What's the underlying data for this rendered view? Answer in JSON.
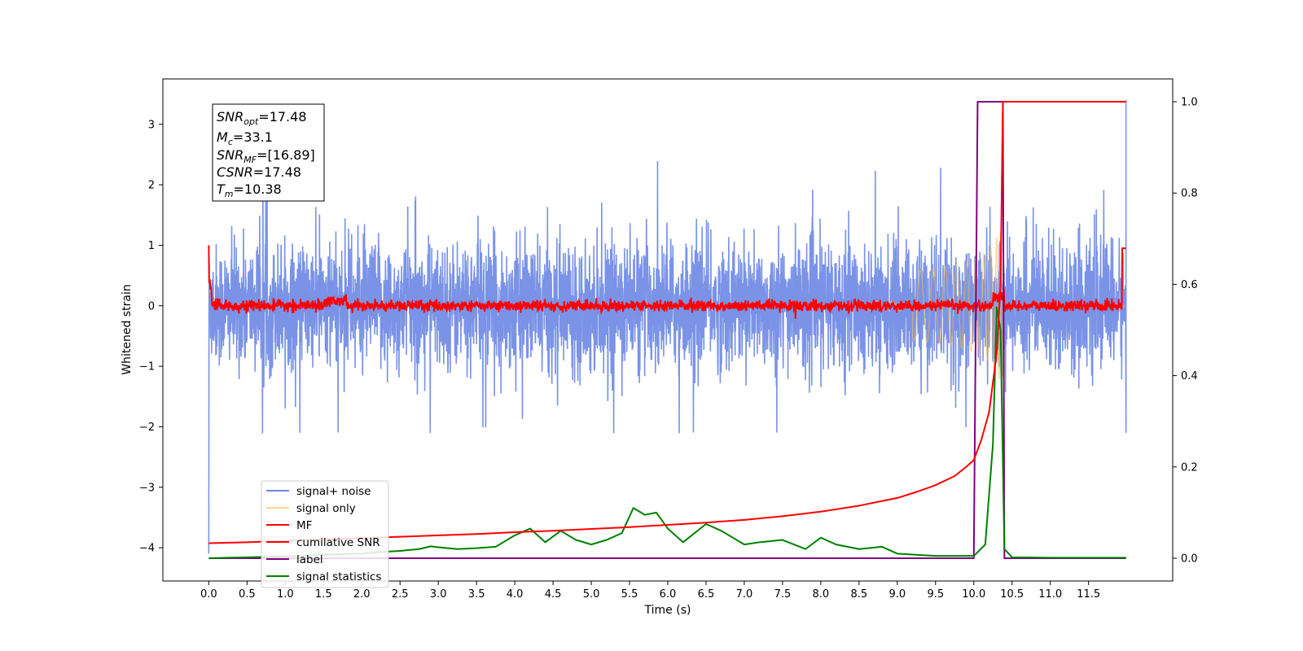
{
  "chart_data": {
    "type": "line",
    "xlabel": "Time (s)",
    "ylabel": "Whitened strain",
    "xlim": [
      -0.6,
      12.6
    ],
    "ylim": [
      -4.55,
      3.75
    ],
    "y2lim": [
      -0.05,
      1.05
    ],
    "x_ticks": [
      "0.0",
      "0.5",
      "1.0",
      "1.5",
      "2.0",
      "2.5",
      "3.0",
      "3.5",
      "4.0",
      "4.5",
      "5.0",
      "5.5",
      "6.0",
      "6.5",
      "7.0",
      "7.5",
      "8.0",
      "8.5",
      "9.0",
      "9.5",
      "10.0",
      "10.5",
      "11.0",
      "11.5"
    ],
    "y_ticks": [
      "3",
      "2",
      "1",
      "0",
      "−1",
      "−2",
      "−3",
      "−4"
    ],
    "y2_ticks": [
      "1.0",
      "0.8",
      "0.6",
      "0.4",
      "0.2",
      "0.0"
    ],
    "annotations": {
      "snr_opt": "=17.48",
      "mc": "=33.1",
      "snr_mf": "=[16.89]",
      "csnr": "=17.48",
      "tm": "=10.38"
    },
    "legend": {
      "placement": "lower-left",
      "entries": [
        "signal+ noise",
        "signal only",
        "MF",
        "cumilative SNR",
        "label",
        "signal statistics"
      ]
    },
    "colors": {
      "signal_noise": "#6b87e4",
      "signal_only": "#f5b942",
      "mf": "#ff0000",
      "cumulative_snr": "#ff0000",
      "label": "#800080",
      "signal_statistics": "#008000"
    },
    "series": [
      {
        "name": "label",
        "axis": "right",
        "x": [
          0.0,
          10.0,
          10.05,
          10.38,
          10.4,
          11.99
        ],
        "y": [
          0.0,
          0.0,
          1.0,
          1.0,
          0.0,
          0.0
        ]
      },
      {
        "name": "signal statistics",
        "axis": "right",
        "x": [
          0.0,
          0.25,
          0.5,
          0.75,
          1.0,
          1.25,
          1.5,
          1.75,
          2.0,
          2.2,
          2.5,
          2.75,
          2.9,
          3.0,
          3.25,
          3.5,
          3.75,
          4.0,
          4.2,
          4.4,
          4.6,
          4.8,
          5.0,
          5.2,
          5.4,
          5.55,
          5.7,
          5.85,
          6.0,
          6.2,
          6.5,
          6.7,
          7.0,
          7.2,
          7.5,
          7.8,
          8.0,
          8.2,
          8.5,
          8.8,
          9.0,
          9.5,
          10.0,
          10.15,
          10.25,
          10.3,
          10.35,
          10.4,
          10.5,
          11.0,
          11.5,
          11.99
        ],
        "y": [
          0.0,
          0.001,
          0.002,
          0.003,
          0.004,
          0.005,
          0.008,
          0.009,
          0.01,
          0.013,
          0.016,
          0.02,
          0.026,
          0.024,
          0.02,
          0.022,
          0.025,
          0.05,
          0.065,
          0.035,
          0.06,
          0.04,
          0.03,
          0.04,
          0.055,
          0.11,
          0.095,
          0.1,
          0.065,
          0.035,
          0.075,
          0.06,
          0.03,
          0.035,
          0.04,
          0.02,
          0.045,
          0.03,
          0.02,
          0.025,
          0.01,
          0.005,
          0.005,
          0.03,
          0.25,
          0.55,
          0.5,
          0.02,
          0.002,
          0.001,
          0.001,
          0.001
        ]
      },
      {
        "name": "cumilative SNR",
        "axis": "right",
        "x": [
          0.0,
          0.5,
          1.0,
          1.5,
          2.0,
          2.5,
          3.0,
          3.5,
          4.0,
          4.5,
          5.0,
          5.5,
          6.0,
          6.5,
          7.0,
          7.5,
          8.0,
          8.5,
          9.0,
          9.25,
          9.5,
          9.75,
          9.9,
          10.0,
          10.1,
          10.2,
          10.3,
          10.35,
          10.38,
          11.99
        ],
        "y": [
          0.033,
          0.035,
          0.038,
          0.041,
          0.044,
          0.047,
          0.05,
          0.053,
          0.057,
          0.06,
          0.064,
          0.068,
          0.073,
          0.078,
          0.084,
          0.092,
          0.102,
          0.115,
          0.132,
          0.145,
          0.16,
          0.18,
          0.2,
          0.215,
          0.26,
          0.32,
          0.45,
          0.6,
          1.0,
          1.0
        ]
      }
    ],
    "series_note": [
      {
        "name": "signal+ noise",
        "kind": "noise",
        "axis": "left",
        "amplitude": 1.0
      },
      {
        "name": "signal only",
        "kind": "chirp",
        "axis": "left",
        "merger_time": 10.38
      },
      {
        "name": "MF",
        "kind": "noise",
        "axis": "left",
        "amplitude": 0.06
      }
    ]
  }
}
